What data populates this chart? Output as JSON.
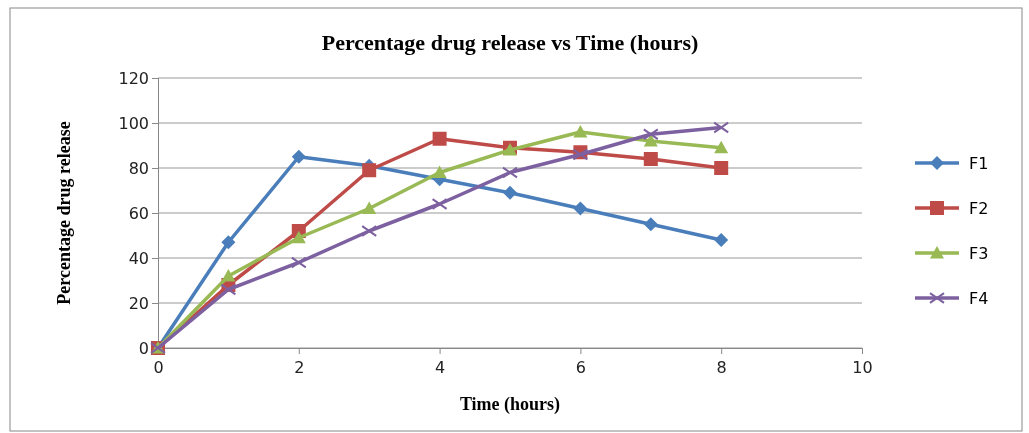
{
  "chart_data": {
    "type": "line",
    "title": "Percentage drug release vs Time (hours)",
    "xlabel": "Time (hours)",
    "ylabel": "Percentage drug release",
    "x": [
      0,
      1,
      2,
      3,
      4,
      5,
      6,
      7,
      8
    ],
    "series": [
      {
        "name": "F1",
        "color": "#4a7ebb",
        "marker": "diamond",
        "values": [
          0,
          47,
          85,
          81,
          75,
          69,
          62,
          55,
          48
        ]
      },
      {
        "name": "F2",
        "color": "#be4b48",
        "marker": "square",
        "values": [
          0,
          28,
          52,
          79,
          93,
          89,
          87,
          84,
          80
        ]
      },
      {
        "name": "F3",
        "color": "#98b954",
        "marker": "triangle",
        "values": [
          0,
          32,
          49,
          62,
          78,
          88,
          96,
          92,
          89
        ]
      },
      {
        "name": "F4",
        "color": "#7d60a0",
        "marker": "cross",
        "values": [
          0,
          26,
          38,
          52,
          64,
          78,
          86,
          95,
          98
        ]
      }
    ],
    "xlim": [
      0,
      10
    ],
    "xticks": [
      0,
      2,
      4,
      6,
      8,
      10
    ],
    "ylim": [
      0,
      120
    ],
    "yticks": [
      0,
      20,
      40,
      60,
      80,
      100,
      120
    ],
    "grid": "y",
    "legend": "right",
    "line_style": "solid"
  }
}
